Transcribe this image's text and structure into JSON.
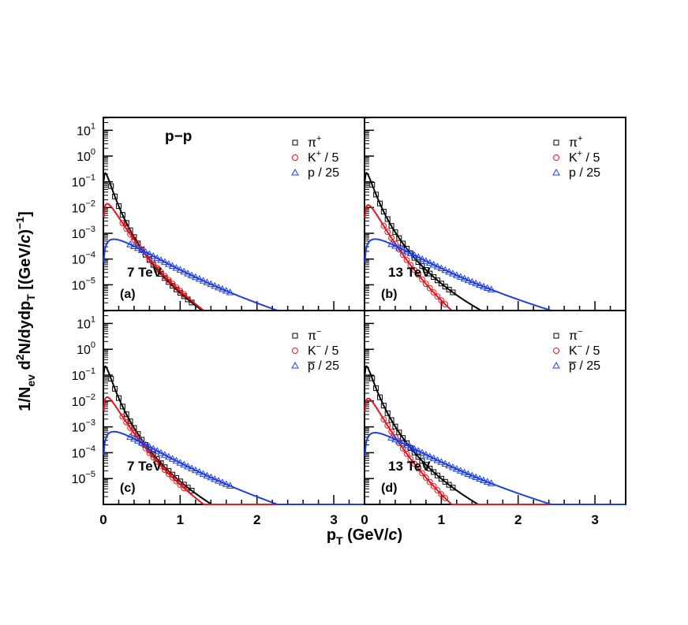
{
  "figure": {
    "system_label": "p−p",
    "ylabel": {
      "pre": "1/N",
      "ev": "ev",
      "mid": " d",
      "sq": "2",
      "mid2": "N/dydp",
      "t": "T",
      "post": " [(GeV/",
      "c": "c",
      "close": ")",
      "exp": "−1",
      "end": "]"
    },
    "xlabel": {
      "p": "p",
      "t": "T",
      "pre": " (GeV/",
      "c": "c",
      "post": ")"
    },
    "colors": {
      "pion": "#000000",
      "kaon": "#e8141b",
      "proton": "#1f3fe0"
    }
  },
  "chart_data": [
    {
      "panel": "(a)",
      "energy": "7 TeV",
      "type": "scatter+line",
      "xlim": [
        0,
        3.4
      ],
      "ylim_log10": [
        -6,
        1.5
      ],
      "xticks": [
        "0",
        "1",
        "2",
        "3"
      ],
      "yticks": [
        {
          "b": "10",
          "e": "1"
        },
        {
          "b": "10",
          "e": "0"
        },
        {
          "b": "10",
          "e": "−1"
        },
        {
          "b": "10",
          "e": "−2"
        },
        {
          "b": "10",
          "e": "−3"
        },
        {
          "b": "10",
          "e": "−4"
        },
        {
          "b": "10",
          "e": "−5"
        }
      ],
      "legend": [
        {
          "sym": "π",
          "sup": "+",
          "suffix": ""
        },
        {
          "sym": "K",
          "sup": "+",
          "suffix": " / 5"
        },
        {
          "sym": "p",
          "sup": "",
          "suffix": "  / 25"
        }
      ],
      "series": [
        {
          "name": "pion",
          "marker": "square",
          "model": {
            "A": 16,
            "B": 0.12,
            "p0": 0.2,
            "n": 8.4
          },
          "points_x": [
            0.1,
            0.15,
            0.2,
            0.25,
            0.3,
            0.35,
            0.4,
            0.45,
            0.5,
            0.55,
            0.6,
            0.65,
            0.7,
            0.75,
            0.8,
            0.85,
            0.9,
            0.95,
            1.0,
            1.05,
            1.1,
            1.15
          ]
        },
        {
          "name": "kaon",
          "marker": "circle",
          "model": {
            "A": 0.55,
            "B": 0.55,
            "p0": 0.5,
            "n": 11
          },
          "points_x": [
            0.25,
            0.3,
            0.35,
            0.4,
            0.45,
            0.5,
            0.55,
            0.6,
            0.65,
            0.7,
            0.75,
            0.8,
            0.85,
            0.9,
            0.95,
            1.0,
            1.05
          ]
        },
        {
          "name": "proton",
          "marker": "triangle",
          "model": {
            "A": 0.009,
            "B": 0.9,
            "p0": 1.5,
            "n": 10.6
          },
          "points_x": [
            0.35,
            0.4,
            0.45,
            0.5,
            0.55,
            0.6,
            0.65,
            0.7,
            0.75,
            0.8,
            0.85,
            0.9,
            0.95,
            1.0,
            1.05,
            1.1,
            1.15,
            1.2,
            1.25,
            1.3,
            1.35,
            1.4,
            1.45,
            1.5,
            1.55,
            1.6,
            1.65
          ]
        }
      ]
    },
    {
      "panel": "(b)",
      "energy": "13 TeV",
      "type": "scatter+line",
      "xlim": [
        0,
        3.4
      ],
      "ylim_log10": [
        -6,
        1.5
      ],
      "xticks": [
        "0",
        "1",
        "2",
        "3"
      ],
      "yticks": [],
      "legend": [
        {
          "sym": "π",
          "sup": "+",
          "suffix": ""
        },
        {
          "sym": "K",
          "sup": "+",
          "suffix": " / 5"
        },
        {
          "sym": "p",
          "sup": "",
          "suffix": "  / 25"
        }
      ],
      "series": [
        {
          "name": "pion",
          "marker": "square",
          "model": {
            "A": 16,
            "B": 0.12,
            "p0": 0.2,
            "n": 7.7
          },
          "points_x": [
            0.1,
            0.15,
            0.2,
            0.25,
            0.3,
            0.35,
            0.4,
            0.45,
            0.5,
            0.55,
            0.6,
            0.65,
            0.7,
            0.75,
            0.8,
            0.85,
            0.9,
            0.95,
            1.0,
            1.05,
            1.1,
            1.15
          ]
        },
        {
          "name": "kaon",
          "marker": "circle",
          "model": {
            "A": 0.5,
            "B": 0.55,
            "p0": 0.5,
            "n": 12.8
          },
          "points_x": [
            0.25,
            0.3,
            0.35,
            0.4,
            0.45,
            0.5,
            0.55,
            0.6,
            0.65,
            0.7,
            0.75,
            0.8,
            0.85,
            0.9,
            0.95,
            1.0,
            1.05
          ]
        },
        {
          "name": "proton",
          "marker": "triangle",
          "model": {
            "A": 0.009,
            "B": 0.9,
            "p0": 1.5,
            "n": 9.6
          },
          "points_x": [
            0.35,
            0.4,
            0.45,
            0.5,
            0.55,
            0.6,
            0.65,
            0.7,
            0.75,
            0.8,
            0.85,
            0.9,
            0.95,
            1.0,
            1.05,
            1.1,
            1.15,
            1.2,
            1.25,
            1.3,
            1.35,
            1.4,
            1.45,
            1.5,
            1.55,
            1.6,
            1.65
          ]
        }
      ]
    },
    {
      "panel": "(c)",
      "energy": "7 TeV",
      "type": "scatter+line",
      "xlim": [
        0,
        3.4
      ],
      "ylim_log10": [
        -6,
        1.5
      ],
      "xticks": [
        "0",
        "1",
        "2",
        "3"
      ],
      "yticks": [
        {
          "b": "10",
          "e": "1"
        },
        {
          "b": "10",
          "e": "0"
        },
        {
          "b": "10",
          "e": "−1"
        },
        {
          "b": "10",
          "e": "−2"
        },
        {
          "b": "10",
          "e": "−3"
        },
        {
          "b": "10",
          "e": "−4"
        },
        {
          "b": "10",
          "e": "−5"
        }
      ],
      "legend": [
        {
          "sym": "π",
          "sup": "−",
          "suffix": ""
        },
        {
          "sym": "K",
          "sup": "−",
          "suffix": " / 5"
        },
        {
          "sym": "p̅",
          "sup": "",
          "suffix": "  / 25"
        }
      ],
      "series": [
        {
          "name": "pion",
          "marker": "square",
          "model": {
            "A": 16,
            "B": 0.12,
            "p0": 0.2,
            "n": 8.0
          },
          "points_x": [
            0.1,
            0.15,
            0.2,
            0.25,
            0.3,
            0.35,
            0.4,
            0.45,
            0.5,
            0.55,
            0.6,
            0.65,
            0.7,
            0.75,
            0.8,
            0.85,
            0.9,
            0.95,
            1.0,
            1.05,
            1.1,
            1.15
          ]
        },
        {
          "name": "kaon",
          "marker": "circle",
          "model": {
            "A": 0.55,
            "B": 0.55,
            "p0": 0.5,
            "n": 11
          },
          "points_x": [
            0.25,
            0.3,
            0.35,
            0.4,
            0.45,
            0.5,
            0.55,
            0.6,
            0.65,
            0.7,
            0.75,
            0.8,
            0.85,
            0.9,
            0.95,
            1.0,
            1.05
          ]
        },
        {
          "name": "proton",
          "marker": "triangle",
          "model": {
            "A": 0.01,
            "B": 0.9,
            "p0": 1.5,
            "n": 10.9
          },
          "points_x": [
            0.35,
            0.4,
            0.45,
            0.5,
            0.55,
            0.6,
            0.65,
            0.7,
            0.75,
            0.8,
            0.85,
            0.9,
            0.95,
            1.0,
            1.05,
            1.1,
            1.15,
            1.2,
            1.25,
            1.3,
            1.35,
            1.4,
            1.45,
            1.5,
            1.55,
            1.6,
            1.65
          ]
        }
      ]
    },
    {
      "panel": "(d)",
      "energy": "13 TeV",
      "type": "scatter+line",
      "xlim": [
        0,
        3.4
      ],
      "ylim_log10": [
        -6,
        1.5
      ],
      "xticks": [
        "0",
        "1",
        "2",
        "3"
      ],
      "yticks": [],
      "legend": [
        {
          "sym": "π",
          "sup": "−",
          "suffix": ""
        },
        {
          "sym": "K",
          "sup": "−",
          "suffix": " / 5"
        },
        {
          "sym": "p̅",
          "sup": "",
          "suffix": "  / 25"
        }
      ],
      "series": [
        {
          "name": "pion",
          "marker": "square",
          "model": {
            "A": 16,
            "B": 0.12,
            "p0": 0.2,
            "n": 7.8
          },
          "points_x": [
            0.1,
            0.15,
            0.2,
            0.25,
            0.3,
            0.35,
            0.4,
            0.45,
            0.5,
            0.55,
            0.6,
            0.65,
            0.7,
            0.75,
            0.8,
            0.85,
            0.9,
            0.95,
            1.0,
            1.05,
            1.1,
            1.15
          ]
        },
        {
          "name": "kaon",
          "marker": "circle",
          "model": {
            "A": 0.5,
            "B": 0.55,
            "p0": 0.5,
            "n": 12.8
          },
          "points_x": [
            0.25,
            0.3,
            0.35,
            0.4,
            0.45,
            0.5,
            0.55,
            0.6,
            0.65,
            0.7,
            0.75,
            0.8,
            0.85,
            0.9,
            0.95,
            1.0,
            1.05
          ]
        },
        {
          "name": "proton",
          "marker": "triangle",
          "model": {
            "A": 0.009,
            "B": 0.9,
            "p0": 1.5,
            "n": 9.6
          },
          "points_x": [
            0.35,
            0.4,
            0.45,
            0.5,
            0.55,
            0.6,
            0.65,
            0.7,
            0.75,
            0.8,
            0.85,
            0.9,
            0.95,
            1.0,
            1.05,
            1.1,
            1.15,
            1.2,
            1.25,
            1.3,
            1.35,
            1.4,
            1.45,
            1.5,
            1.55,
            1.6,
            1.65
          ]
        }
      ]
    }
  ]
}
